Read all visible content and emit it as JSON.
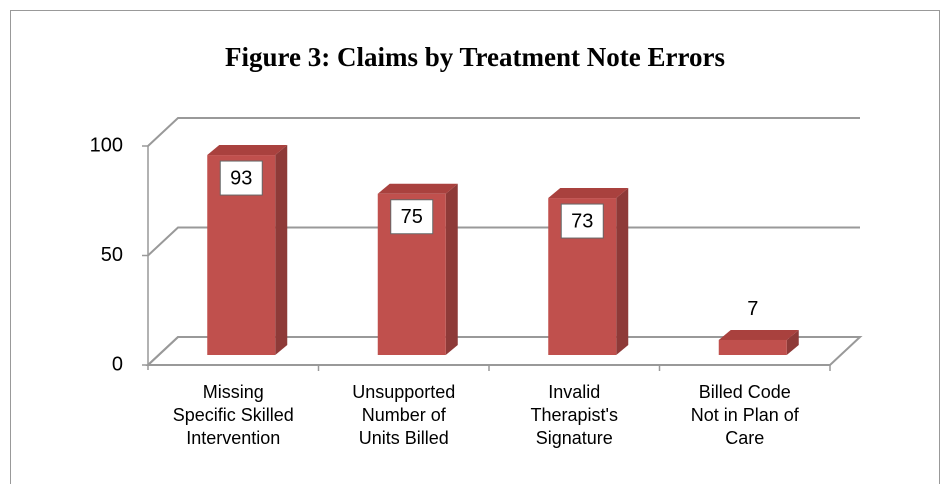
{
  "chart_data": {
    "type": "bar3d",
    "title": "Figure 3:  Claims by Treatment Note Errors",
    "categories": [
      "Missing\nSpecific Skilled\nIntervention",
      "Unsupported\nNumber of\nUnits Billed",
      "Invalid\nTherapist's\nSignature",
      "Billed Code\nNot in Plan of\nCare"
    ],
    "values": [
      93,
      75,
      73,
      7
    ],
    "color": "#c0504d",
    "ylim": [
      0,
      100
    ],
    "yticks": [
      0,
      50,
      100
    ],
    "grid": true
  }
}
